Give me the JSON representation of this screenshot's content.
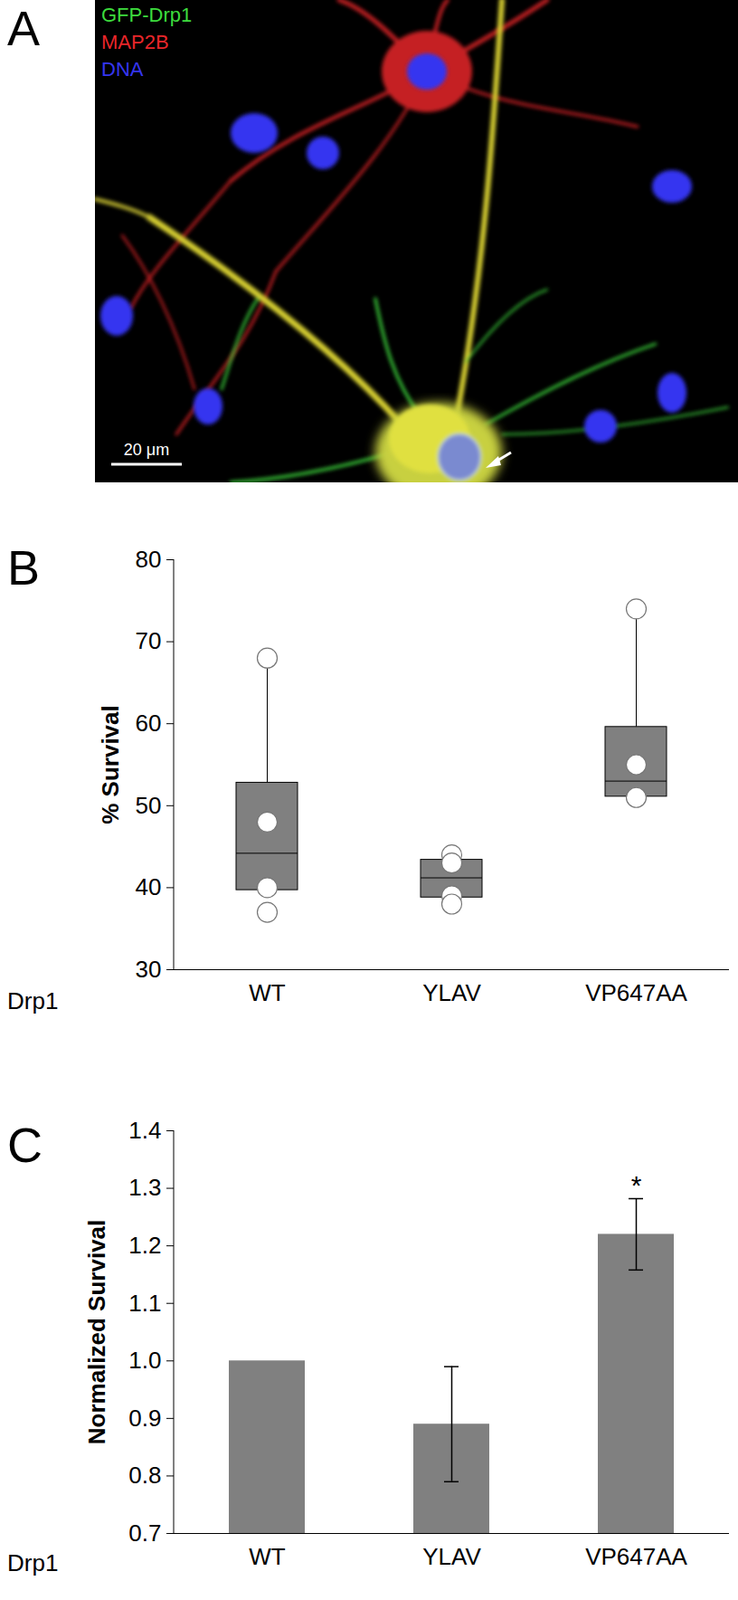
{
  "image": {
    "panel_label": "A",
    "channels": [
      {
        "name": "GFP-Drp1",
        "color": "#3ddc3d"
      },
      {
        "name": "MAP2B",
        "color": "#e8262a"
      },
      {
        "name": "DNA",
        "color": "#3535f0"
      }
    ],
    "scale_bar": "20 μm"
  },
  "chart_data": [
    {
      "panel_label": "B",
      "type": "box",
      "y_label": "% Survival",
      "x_label": "Drp1",
      "categories": [
        "WT",
        "YLAV",
        "VP647AA"
      ],
      "q1": [
        39.7,
        38.8,
        51.1
      ],
      "median": [
        44.2,
        41.2,
        53.0
      ],
      "q3": [
        52.8,
        43.4,
        59.6
      ],
      "whisker_high": [
        68,
        43.4,
        74
      ],
      "points": [
        [
          68,
          48,
          40,
          37
        ],
        [
          44,
          43,
          39,
          38
        ],
        [
          74,
          55,
          51
        ]
      ],
      "color": "#808080",
      "ylim": [
        30,
        80
      ],
      "yticks": [
        30,
        40,
        50,
        60,
        70,
        80
      ]
    },
    {
      "panel_label": "C",
      "type": "bar",
      "y_label": "Normalized Survival",
      "x_label": "Drp1",
      "categories": [
        "WT",
        "YLAV",
        "VP647AA"
      ],
      "values": [
        1.0,
        0.89,
        1.22
      ],
      "errors": [
        0,
        0.1,
        0.062
      ],
      "color": "#808080",
      "ylim": [
        0.7,
        1.4
      ],
      "yticks": [
        0.7,
        0.8,
        0.9,
        {
          "value": 1,
          "label": "1.0"
        },
        1.1,
        1.2,
        1.3,
        1.4
      ],
      "annotations": [
        {
          "category": "VP647AA",
          "text": "*"
        }
      ]
    }
  ]
}
